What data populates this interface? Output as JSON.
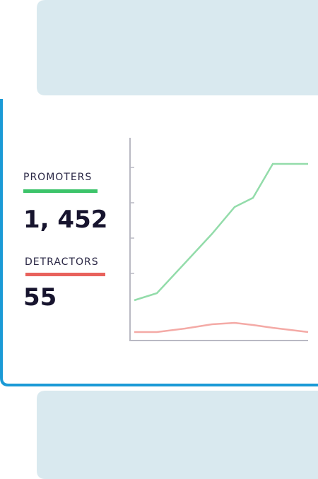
{
  "promoters": {
    "label": "PROMOTERS",
    "value": "1, 452"
  },
  "detractors": {
    "label": "DETRACTORS",
    "value": "55"
  },
  "chart_data": {
    "type": "line",
    "x": [
      0,
      32,
      72,
      110,
      142,
      168,
      196,
      246
    ],
    "xlim": [
      0,
      246
    ],
    "ylim": [
      0,
      287
    ],
    "yticks": [
      95,
      145,
      195,
      245
    ],
    "series": [
      {
        "color": "#93dcaa",
        "values": [
          57,
          67,
          110,
          151,
          189,
          202,
          250,
          250
        ]
      },
      {
        "color": "#f4aaa6",
        "values": [
          12,
          12,
          17,
          23,
          25,
          22,
          18,
          12
        ]
      }
    ]
  }
}
